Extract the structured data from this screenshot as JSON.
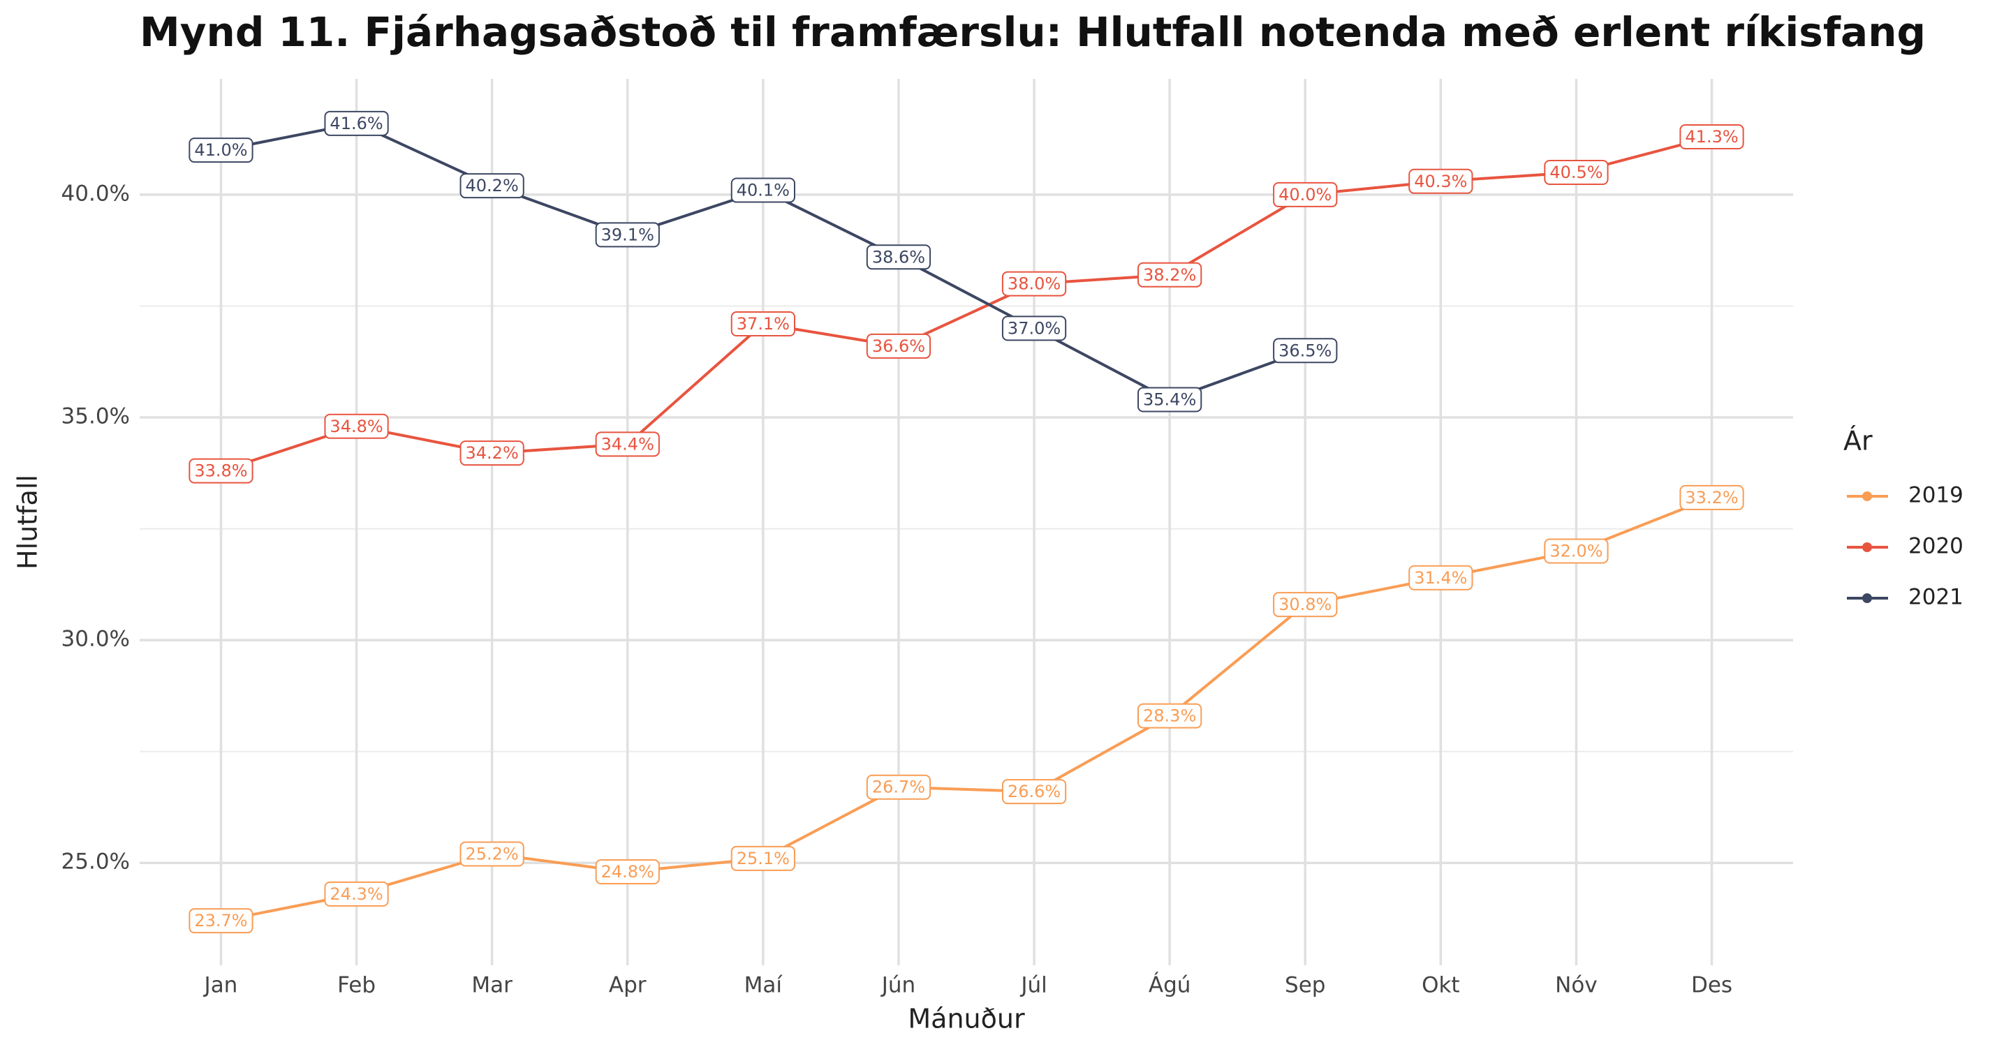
{
  "chart_data": {
    "type": "line",
    "title": "Mynd 11. Fjárhagsaðstoð til framfærslu: Hlutfall notenda með erlent ríkisfang",
    "x_label": "Mánuður",
    "y_label": "Hlutfall",
    "legend_title": "Ár",
    "legend": "right",
    "grid": true,
    "categories": [
      "Jan",
      "Feb",
      "Mar",
      "Apr",
      "Maí",
      "Jún",
      "Júl",
      "Ágú",
      "Sep",
      "Okt",
      "Nóv",
      "Des"
    ],
    "ylim": [
      22.7,
      42.6
    ],
    "yticks": [
      {
        "value": 25,
        "label": "25.0%"
      },
      {
        "value": 30,
        "label": "30.0%"
      },
      {
        "value": 35,
        "label": "35.0%"
      },
      {
        "value": 40,
        "label": "40.0%"
      }
    ],
    "series": [
      {
        "name": "2019",
        "color": "#f99d55",
        "values": [
          23.7,
          24.3,
          25.2,
          24.8,
          25.1,
          26.7,
          26.6,
          28.3,
          30.8,
          31.4,
          32.0,
          33.2
        ],
        "value_labels": [
          "23.7%",
          "24.3%",
          "25.2%",
          "24.8%",
          "25.1%",
          "26.7%",
          "26.6%",
          "28.3%",
          "30.8%",
          "31.4%",
          "32.0%",
          "33.2%"
        ]
      },
      {
        "name": "2020",
        "color": "#e8543f",
        "values": [
          33.8,
          34.8,
          34.2,
          34.4,
          37.1,
          36.6,
          38.0,
          38.2,
          40.0,
          40.3,
          40.5,
          41.3
        ],
        "value_labels": [
          "33.8%",
          "34.8%",
          "34.2%",
          "34.4%",
          "37.1%",
          "36.6%",
          "38.0%",
          "38.2%",
          "40.0%",
          "40.3%",
          "40.5%",
          "41.3%"
        ]
      },
      {
        "name": "2021",
        "color": "#3d4763",
        "values": [
          41.0,
          41.6,
          40.2,
          39.1,
          40.1,
          38.6,
          37.0,
          35.4,
          36.5,
          null,
          null,
          null
        ],
        "value_labels": [
          "41.0%",
          "41.6%",
          "40.2%",
          "39.1%",
          "40.1%",
          "38.6%",
          "37.0%",
          "35.4%",
          "36.5%",
          null,
          null,
          null
        ]
      }
    ]
  }
}
